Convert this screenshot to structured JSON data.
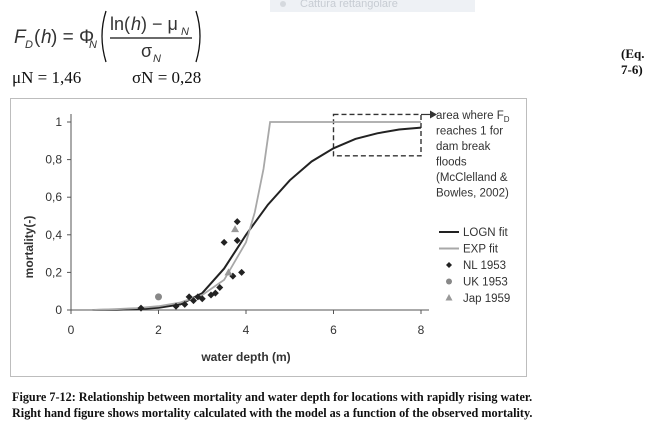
{
  "window": {
    "capture_tab_label": "Cattura rettangolare"
  },
  "equation": {
    "number": "(Eq. 7-6)",
    "mu_label": "μN = 1,46",
    "sigma_label": "σN = 0,28"
  },
  "chart_data": {
    "type": "line",
    "xlabel": "water depth (m)",
    "ylabel": "mortality(-)",
    "xlim": [
      0,
      8
    ],
    "ylim": [
      0,
      1
    ],
    "x_ticks": [
      "0",
      "2",
      "4",
      "6",
      "8"
    ],
    "y_ticks": [
      "0",
      "0,2",
      "0,4",
      "0,6",
      "0,8",
      "1"
    ],
    "grid": false,
    "legend_position": "right",
    "series": [
      {
        "name": "LOGN fit",
        "kind": "line",
        "color": "#222222",
        "x": [
          0.5,
          1.0,
          1.5,
          2.0,
          2.5,
          3.0,
          3.5,
          4.0,
          4.5,
          5.0,
          5.5,
          6.0,
          6.5,
          7.0,
          7.5,
          8.0
        ],
        "y": [
          0.0,
          0.001,
          0.005,
          0.012,
          0.03,
          0.09,
          0.22,
          0.4,
          0.56,
          0.69,
          0.79,
          0.86,
          0.91,
          0.94,
          0.96,
          0.97
        ]
      },
      {
        "name": "EXP fit",
        "kind": "line",
        "color": "#a8a8a8",
        "x": [
          0.5,
          1.0,
          1.5,
          2.0,
          2.5,
          3.0,
          3.5,
          4.0,
          4.2,
          4.4,
          4.55,
          8.0
        ],
        "y": [
          0.0,
          0.004,
          0.01,
          0.02,
          0.04,
          0.08,
          0.16,
          0.36,
          0.52,
          0.75,
          1.0,
          1.0
        ]
      },
      {
        "name": "NL 1953",
        "kind": "points",
        "marker": "diamond",
        "color": "#222222",
        "x": [
          1.6,
          2.4,
          2.6,
          2.7,
          2.8,
          2.9,
          3.0,
          3.2,
          3.3,
          3.4,
          3.5,
          3.7,
          3.8,
          3.8,
          3.9
        ],
        "y": [
          0.01,
          0.02,
          0.03,
          0.07,
          0.05,
          0.07,
          0.06,
          0.08,
          0.09,
          0.12,
          0.36,
          0.18,
          0.37,
          0.47,
          0.2
        ]
      },
      {
        "name": "UK 1953",
        "kind": "points",
        "marker": "circle",
        "color": "#888888",
        "x": [
          2.0
        ],
        "y": [
          0.07
        ]
      },
      {
        "name": "Jap 1959",
        "kind": "points",
        "marker": "triangle",
        "color": "#999999",
        "x": [
          3.6,
          3.75
        ],
        "y": [
          0.2,
          0.43
        ]
      }
    ],
    "annotation": {
      "lines": [
        "area where F",
        "reaches 1 for",
        "dam break",
        "floods",
        "(McClelland &",
        "Bowles, 2002)"
      ],
      "subscript": "D",
      "box_x": [
        6.0,
        8.0
      ],
      "box_y": [
        0.82,
        1.04
      ]
    }
  },
  "caption": {
    "line1": "Figure 7-12: Relationship between mortality and water depth for locations with rapidly rising water.",
    "line2": "Right hand figure shows mortality calculated with the model as a function of the observed mortality."
  }
}
